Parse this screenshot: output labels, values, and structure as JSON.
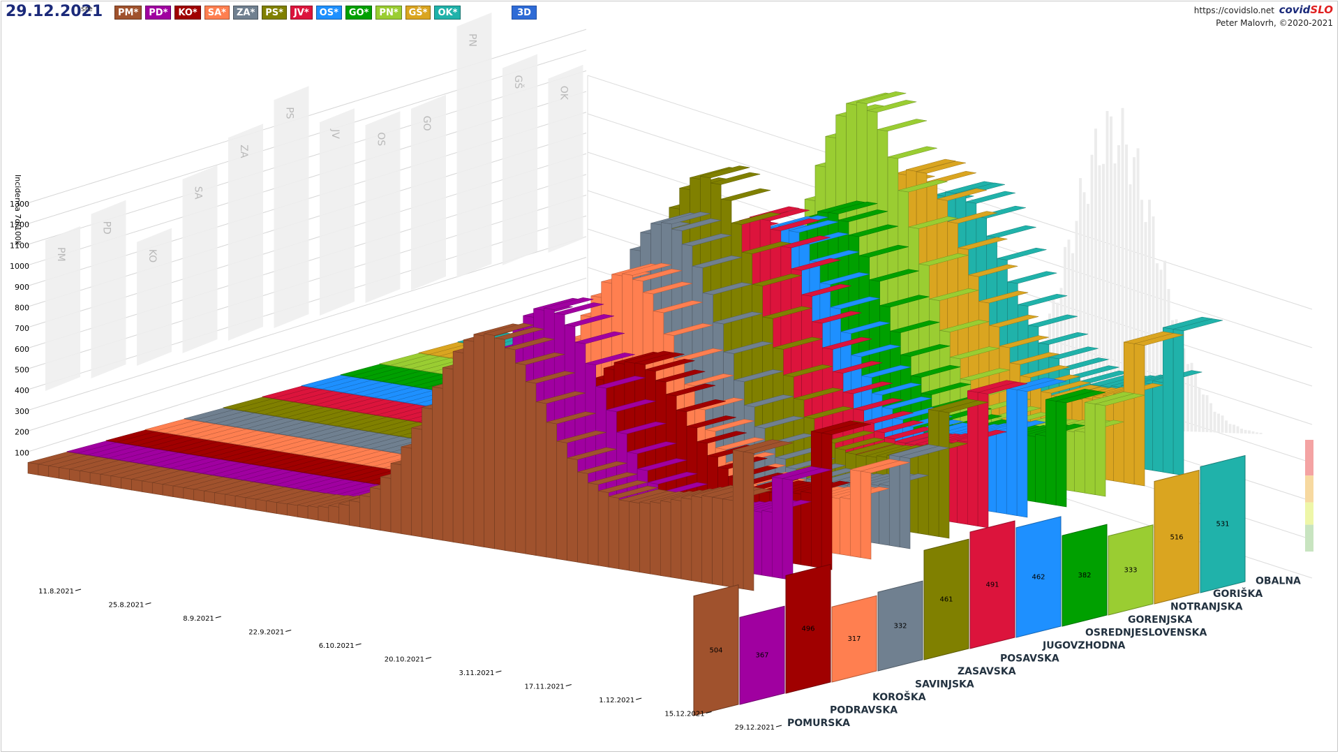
{
  "header": {
    "date": "29.12.2021",
    "weekday": "sre",
    "view_button": "3D",
    "url": "https://covidslo.net",
    "logo_part1": "covid",
    "logo_part2": "SLO",
    "author": "Peter Malovrh, ©2020-2021"
  },
  "legend": [
    {
      "label": "PM*",
      "color": "#a0522d",
      "name": "legend-pm"
    },
    {
      "label": "PD*",
      "color": "#a000a0",
      "name": "legend-pd"
    },
    {
      "label": "KO*",
      "color": "#a00000",
      "name": "legend-ko"
    },
    {
      "label": "SA*",
      "color": "#ff7f50",
      "name": "legend-sa"
    },
    {
      "label": "ZA*",
      "color": "#708090",
      "name": "legend-za"
    },
    {
      "label": "PS*",
      "color": "#808000",
      "name": "legend-ps"
    },
    {
      "label": "JV*",
      "color": "#dc143c",
      "name": "legend-jv"
    },
    {
      "label": "OS*",
      "color": "#1e90ff",
      "name": "legend-os"
    },
    {
      "label": "GO*",
      "color": "#00a000",
      "name": "legend-go"
    },
    {
      "label": "PN*",
      "color": "#9acd32",
      "name": "legend-pn"
    },
    {
      "label": "GŠ*",
      "color": "#daa520",
      "name": "legend-gs"
    },
    {
      "label": "OK*",
      "color": "#20b2aa",
      "name": "legend-ok"
    }
  ],
  "chart_data": {
    "type": "bar",
    "variant": "3d-stacked-depth",
    "ylabel": "Incidenca 7d/100k",
    "yticks": [
      100,
      200,
      300,
      400,
      500,
      600,
      700,
      800,
      900,
      1000,
      1100,
      1200,
      1300
    ],
    "ylim": [
      0,
      1300
    ],
    "date_ticks": [
      "11.8.2021",
      "25.8.2021",
      "8.9.2021",
      "22.9.2021",
      "6.10.2021",
      "20.10.2021",
      "3.11.2021",
      "17.11.2021",
      "1.12.2021",
      "15.12.2021",
      "29.12.2021"
    ],
    "series": [
      {
        "name": "POMURSKA",
        "abbr": "PM",
        "color": "#a0522d",
        "latest": 504,
        "peak": 780,
        "peak_pos": 0.63
      },
      {
        "name": "PODRAVSKA",
        "abbr": "PD",
        "color": "#a000a0",
        "latest": 367,
        "peak": 850,
        "peak_pos": 0.66
      },
      {
        "name": "KOROŠKA",
        "abbr": "KO",
        "color": "#a00000",
        "latest": 496,
        "peak": 640,
        "peak_pos": 0.72
      },
      {
        "name": "SAVINJSKA",
        "abbr": "SA",
        "color": "#ff7f50",
        "latest": 317,
        "peak": 900,
        "peak_pos": 0.66
      },
      {
        "name": "ZASAVSKA",
        "abbr": "ZA",
        "color": "#708090",
        "latest": 332,
        "peak": 1050,
        "peak_pos": 0.66
      },
      {
        "name": "POSAVSKA",
        "abbr": "PS",
        "color": "#808000",
        "latest": 461,
        "peak": 1180,
        "peak_pos": 0.66
      },
      {
        "name": "JUGOVZHODNA",
        "abbr": "JV",
        "color": "#dc143c",
        "latest": 491,
        "peak": 1000,
        "peak_pos": 0.68
      },
      {
        "name": "OSREDNJESLOVENSKA",
        "abbr": "OS",
        "color": "#1e90ff",
        "latest": 462,
        "peak": 920,
        "peak_pos": 0.66
      },
      {
        "name": "GORENJSKA",
        "abbr": "GO",
        "color": "#00a000",
        "latest": 382,
        "peak": 940,
        "peak_pos": 0.67
      },
      {
        "name": "NOTRANJSKA",
        "abbr": "PN",
        "color": "#9acd32",
        "latest": 333,
        "peak": 1300,
        "peak_pos": 0.66
      },
      {
        "name": "GORIŠKA",
        "abbr": "GŠ",
        "color": "#daa520",
        "latest": 516,
        "peak": 1020,
        "peak_pos": 0.68
      },
      {
        "name": "OBALNA",
        "abbr": "OK",
        "color": "#20b2aa",
        "latest": 531,
        "peak": 900,
        "peak_pos": 0.68
      }
    ],
    "back_wall_max": [
      {
        "abbr": "PM",
        "value": 780
      },
      {
        "abbr": "PD",
        "value": 850
      },
      {
        "abbr": "KO",
        "value": 640
      },
      {
        "abbr": "SA",
        "value": 900
      },
      {
        "abbr": "ZA",
        "value": 1050
      },
      {
        "abbr": "PS",
        "value": 1180
      },
      {
        "abbr": "JV",
        "value": 1000
      },
      {
        "abbr": "OS",
        "value": 920
      },
      {
        "abbr": "GO",
        "value": 940
      },
      {
        "abbr": "PN",
        "value": 1300
      },
      {
        "abbr": "GŠ",
        "value": 1020
      },
      {
        "abbr": "OK",
        "value": 900
      }
    ],
    "grid": true
  }
}
